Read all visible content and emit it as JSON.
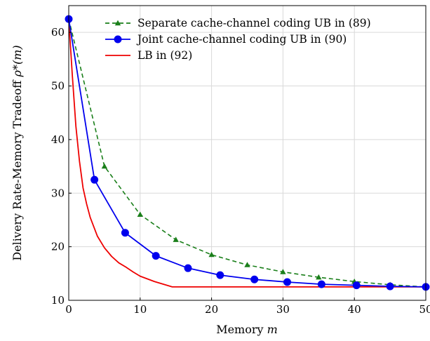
{
  "chart_data": {
    "type": "line",
    "title": "",
    "xlabel": "Memory m",
    "ylabel": "Delivery Rate-Memory Tradeoff ρ*(m)",
    "xlim": [
      0,
      50
    ],
    "ylim": [
      10,
      65
    ],
    "x_ticks": [
      "0",
      "10",
      "20",
      "30",
      "40",
      "50"
    ],
    "y_ticks": [
      "10",
      "20",
      "30",
      "40",
      "50",
      "60"
    ],
    "grid": true,
    "legend_position": "top-right",
    "series": [
      {
        "name": "Separate cache-channel coding UB in (89)",
        "color": "#1a7f1a",
        "style": "dashed",
        "marker": "triangle",
        "x": [
          0,
          5,
          10,
          15,
          20,
          25,
          30,
          35,
          40,
          45,
          50
        ],
        "y": [
          62.5,
          35,
          26,
          21.3,
          18.5,
          16.6,
          15.3,
          14.3,
          13.5,
          12.9,
          12.5
        ]
      },
      {
        "name": "Joint cache-channel coding UB in (90)",
        "color": "#0000ee",
        "style": "solid",
        "marker": "circle",
        "x": [
          0,
          3.6,
          7.9,
          12.2,
          16.7,
          21.2,
          26,
          30.6,
          35.4,
          40.3,
          45,
          50
        ],
        "y": [
          62.5,
          32.5,
          22.6,
          18.3,
          16.0,
          14.7,
          13.9,
          13.4,
          13.0,
          12.8,
          12.6,
          12.5
        ]
      },
      {
        "name": "LB in (92)",
        "color": "#ee0000",
        "style": "solid",
        "marker": "none",
        "x": [
          0,
          0.5,
          1,
          1.5,
          2,
          2.5,
          3,
          4,
          5,
          6,
          7,
          8,
          9,
          10,
          12,
          14.5,
          20,
          30,
          40,
          50
        ],
        "y": [
          62.5,
          52,
          42.5,
          36,
          31,
          28,
          25.5,
          22,
          19.8,
          18.2,
          17,
          16.2,
          15.3,
          14.5,
          13.5,
          12.5,
          12.5,
          12.5,
          12.5,
          12.5
        ]
      }
    ]
  }
}
